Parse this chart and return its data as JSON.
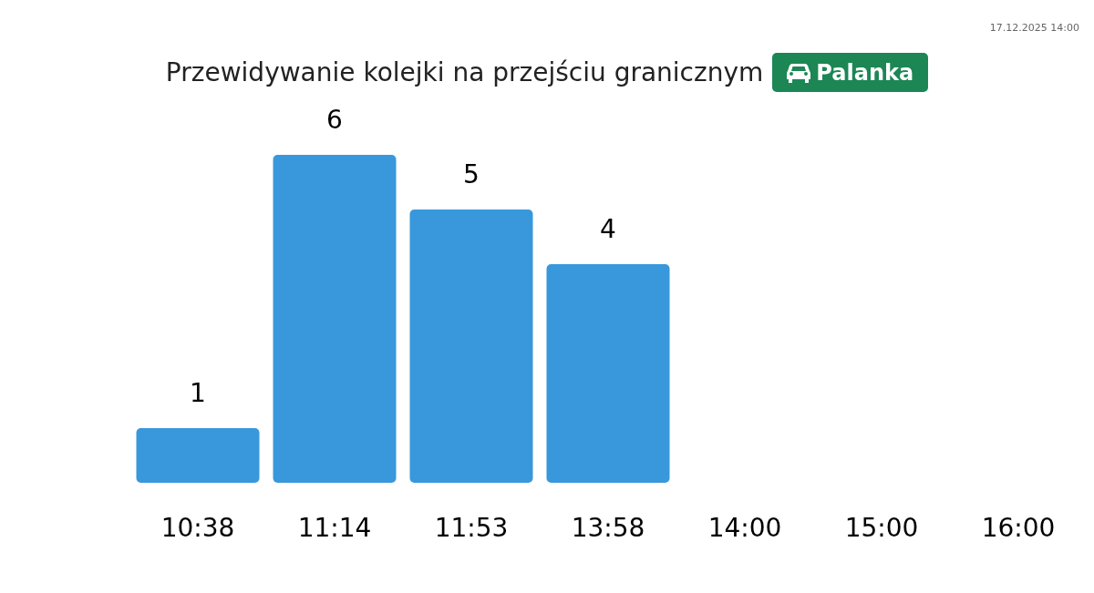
{
  "chart_data": {
    "type": "bar",
    "title": "Przewidywanie kolejki na przejściu granicznym",
    "subtitle": "Palanka",
    "annotations": [
      "17.12.2025 14:00"
    ],
    "categories": [
      "10:38",
      "11:14",
      "11:53",
      "13:58",
      "14:00",
      "15:00",
      "16:00"
    ],
    "values": [
      1,
      6,
      5,
      4,
      null,
      null,
      null
    ],
    "color": "#3898db",
    "data_labels": true
  }
}
